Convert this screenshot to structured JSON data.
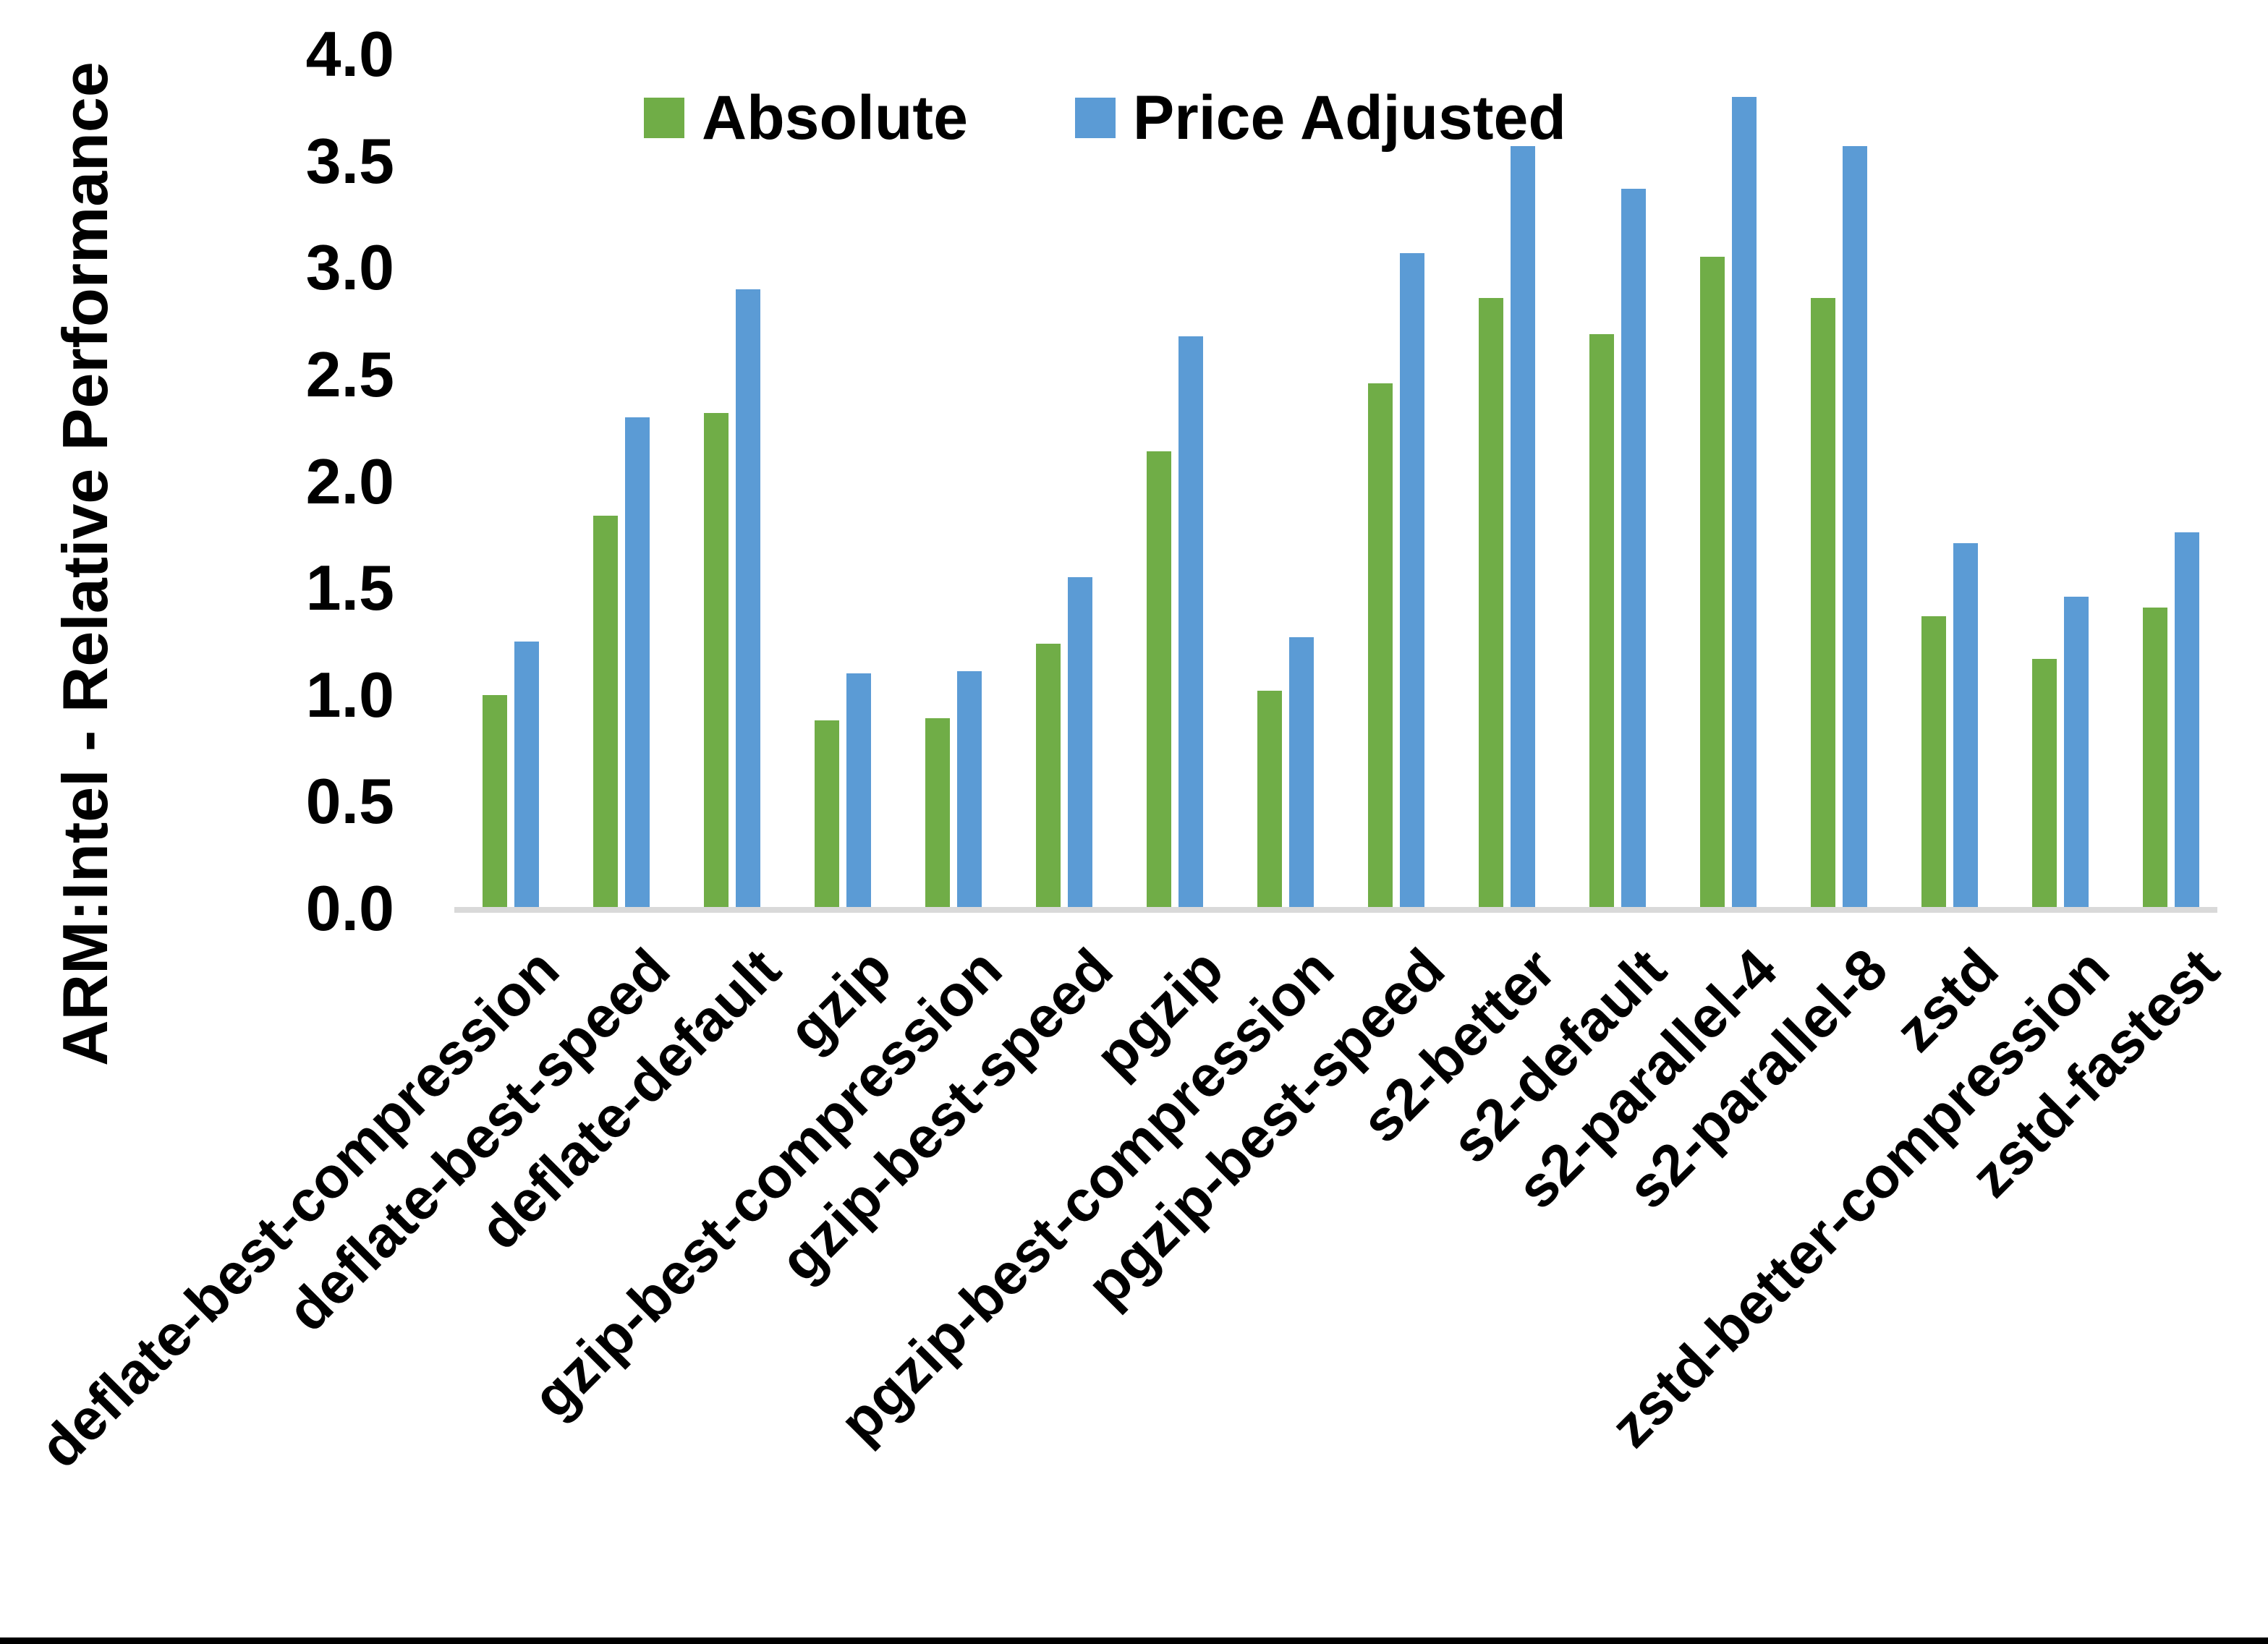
{
  "chart_data": {
    "type": "bar",
    "title": "",
    "xlabel": "",
    "ylabel": "ARM:Intel - Relative Performance",
    "ylim": [
      0.0,
      4.0
    ],
    "ytick_step": 0.5,
    "ytick_labels": [
      "0.0",
      "0.5",
      "1.0",
      "1.5",
      "2.0",
      "2.5",
      "3.0",
      "3.5",
      "4.0"
    ],
    "grid": false,
    "legend_position": "top-center-inside",
    "categories": [
      "deflate-best-compression",
      "deflate-best-speed",
      "deflate-default",
      "gzip",
      "gzip-best-compression",
      "gzip-best-speed",
      "pgzip",
      "pgzip-best-compression",
      "pgzip-best-speed",
      "s2-better",
      "s2-default",
      "s2-parallel-4",
      "s2-parallel-8",
      "zstd",
      "zstd-better-compression",
      "zstd-fastest"
    ],
    "series": [
      {
        "name": "Absolute",
        "color": "#70AD47",
        "values": [
          1.0,
          1.84,
          2.32,
          0.88,
          0.89,
          1.24,
          2.14,
          1.02,
          2.46,
          2.86,
          2.69,
          3.05,
          2.86,
          1.37,
          1.17,
          1.41
        ]
      },
      {
        "name": "Price Adjusted",
        "color": "#5B9BD5",
        "values": [
          1.25,
          2.3,
          2.9,
          1.1,
          1.11,
          1.55,
          2.68,
          1.27,
          3.07,
          3.57,
          3.37,
          3.8,
          3.57,
          1.71,
          1.46,
          1.76
        ]
      }
    ]
  },
  "colors": {
    "axis_line": "#D9D9D9",
    "text": "#000000",
    "bottom_border": "#000000",
    "background": "#FFFFFF"
  }
}
